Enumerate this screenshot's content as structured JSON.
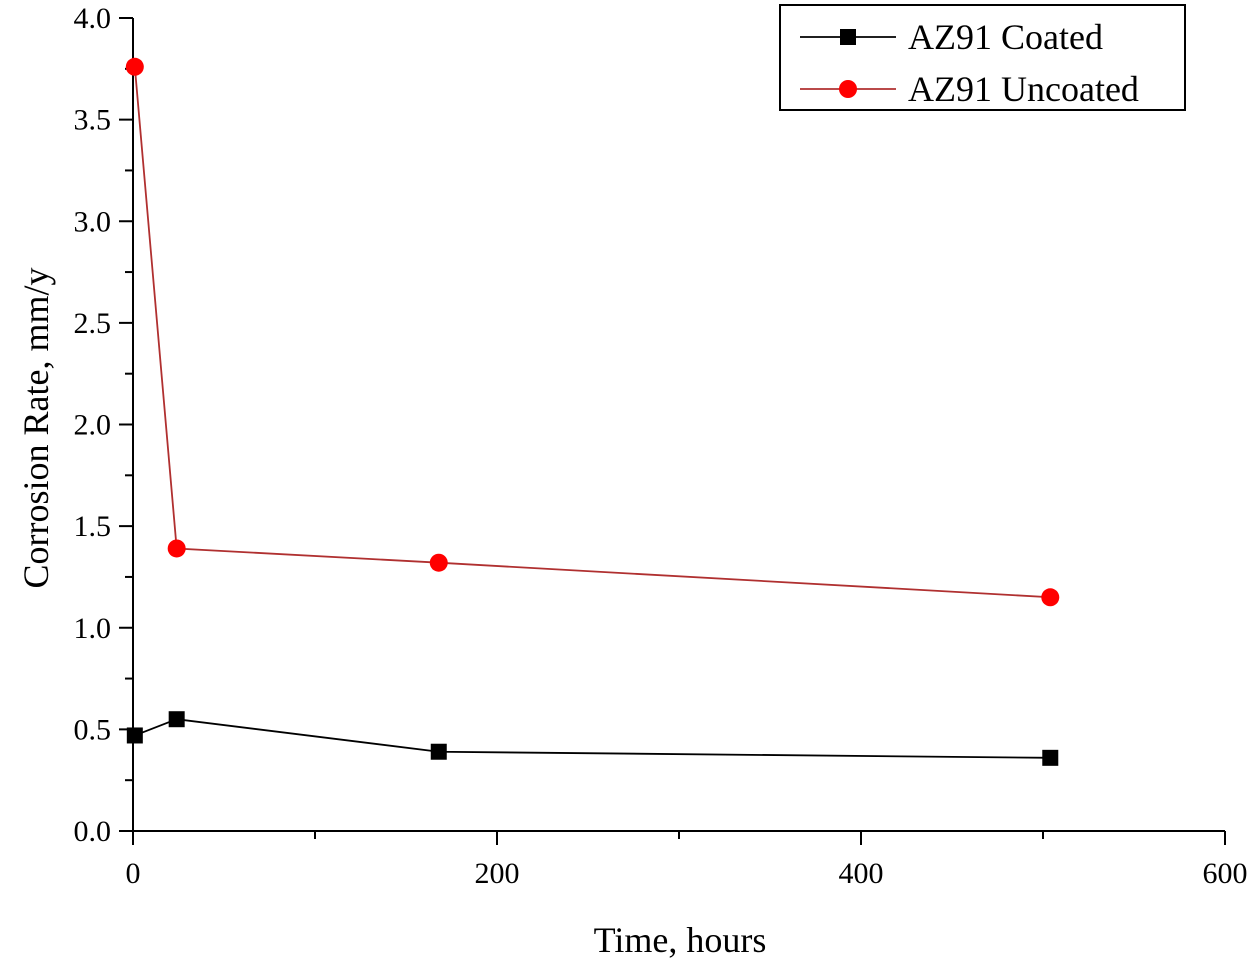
{
  "chart_data": {
    "type": "line",
    "title": "",
    "xlabel": "Time, hours",
    "ylabel": "Corrosion Rate, mm/y",
    "xlim": [
      0,
      600
    ],
    "ylim": [
      0,
      4.0
    ],
    "x_ticks": [
      0,
      200,
      400,
      600
    ],
    "x_tick_labels": [
      "0",
      "200",
      "400",
      "600"
    ],
    "y_ticks": [
      0.0,
      0.5,
      1.0,
      1.5,
      2.0,
      2.5,
      3.0,
      3.5,
      4.0
    ],
    "y_tick_labels": [
      "0.0",
      "0.5",
      "1.0",
      "1.5",
      "2.0",
      "2.5",
      "3.0",
      "3.5",
      "4.0"
    ],
    "grid": false,
    "legend_position": "top-right",
    "series": [
      {
        "name": "AZ91 Coated",
        "color": "#000000",
        "marker": "square",
        "x": [
          1,
          24,
          168,
          504
        ],
        "y": [
          0.47,
          0.55,
          0.39,
          0.36
        ]
      },
      {
        "name": "AZ91 Uncoated",
        "color": "#ff0000",
        "line_color": "#b03030",
        "marker": "circle",
        "x": [
          1,
          24,
          168,
          504
        ],
        "y": [
          3.76,
          1.39,
          1.32,
          1.15
        ]
      }
    ]
  }
}
